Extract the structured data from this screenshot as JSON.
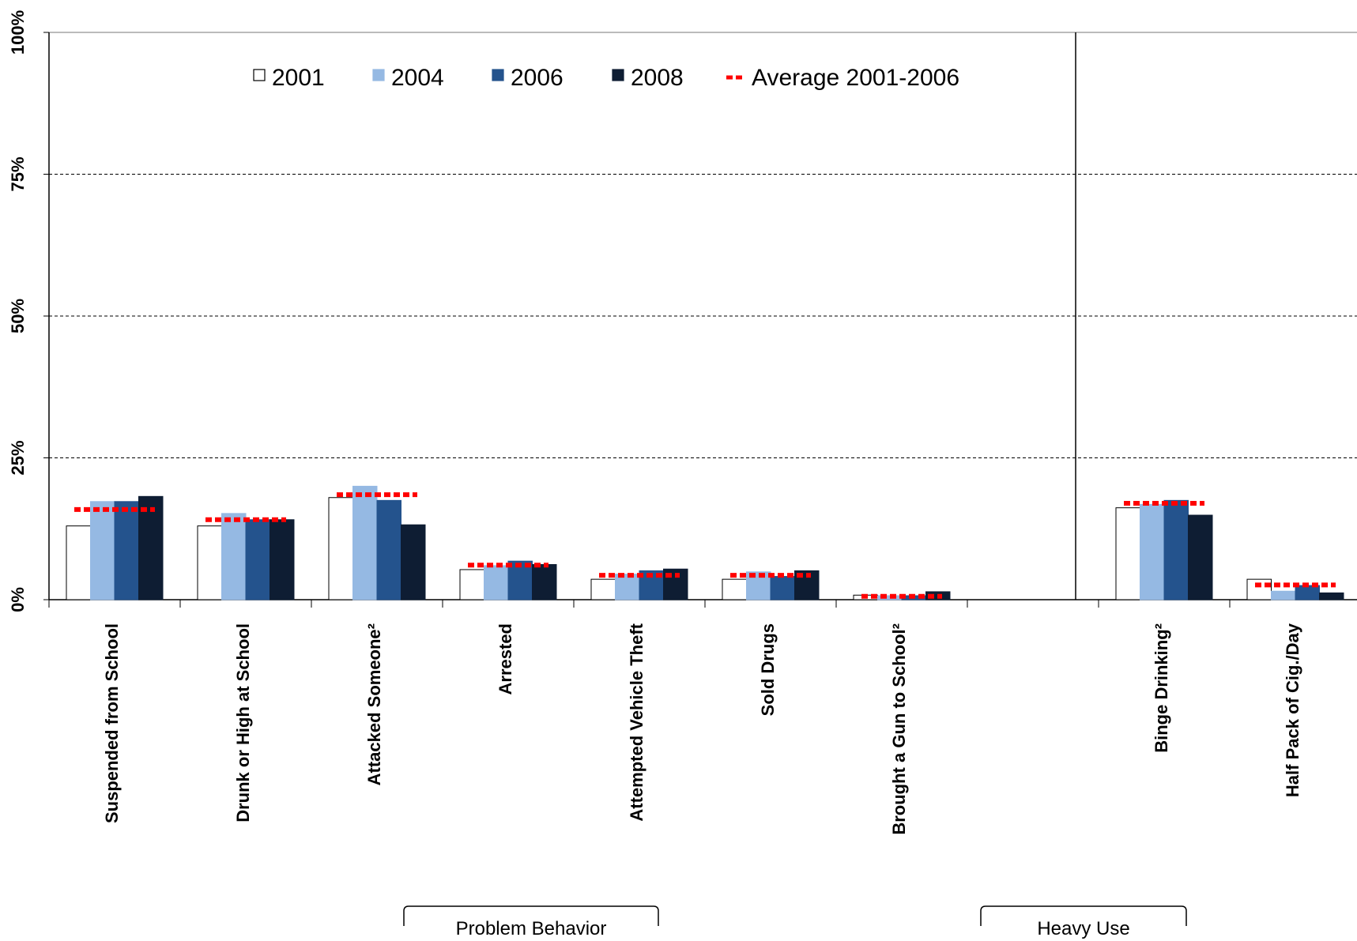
{
  "chart_data": {
    "type": "bar",
    "categories": [
      "Suspended from School",
      "Drunk or High at School",
      "Attacked  Someone²",
      "Arrested",
      "Attempted  Vehicle Theft",
      "Sold Drugs",
      "Brought a Gun to School²",
      "",
      "Binge Drinking²",
      "Half Pack of Cig./Day"
    ],
    "series": [
      {
        "name": "2001",
        "color": "#ffffff",
        "values": [
          13,
          13,
          18,
          5.3,
          3.6,
          3.6,
          0.8,
          null,
          16.2,
          3.6
        ]
      },
      {
        "name": "2004",
        "color": "#95b9e3",
        "values": [
          17.3,
          15.2,
          20,
          6,
          4.5,
          4.9,
          0.7,
          null,
          16.8,
          1.5
        ]
      },
      {
        "name": "2006",
        "color": "#24538d",
        "values": [
          17.3,
          14.1,
          17.5,
          6.8,
          5.1,
          4.1,
          0.7,
          null,
          17.5,
          2.5
        ]
      },
      {
        "name": "2008",
        "color": "#0e1d33",
        "values": [
          18.2,
          14.1,
          13.2,
          6.2,
          5.4,
          5.1,
          1.4,
          null,
          14.9,
          1.2
        ]
      }
    ],
    "average": {
      "name": "Average 2001-2006",
      "color": "#ff0000",
      "values": [
        15.9,
        14.1,
        18.5,
        6.1,
        4.3,
        4.3,
        0.6,
        null,
        17.0,
        2.6
      ]
    },
    "ylim": [
      0,
      100
    ],
    "yticks": [
      0,
      25,
      50,
      75,
      100
    ],
    "ytick_labels": [
      "0%",
      "25%",
      "50%",
      "75%",
      "100%"
    ],
    "grid": "dashed horizontal",
    "legend_placement": "top",
    "groups": [
      {
        "label": "Problem Behavior",
        "from": 3,
        "to": 4
      },
      {
        "label": "Heavy Use",
        "from": 8,
        "to": 9
      }
    ],
    "section_divider_after_index": 7
  }
}
